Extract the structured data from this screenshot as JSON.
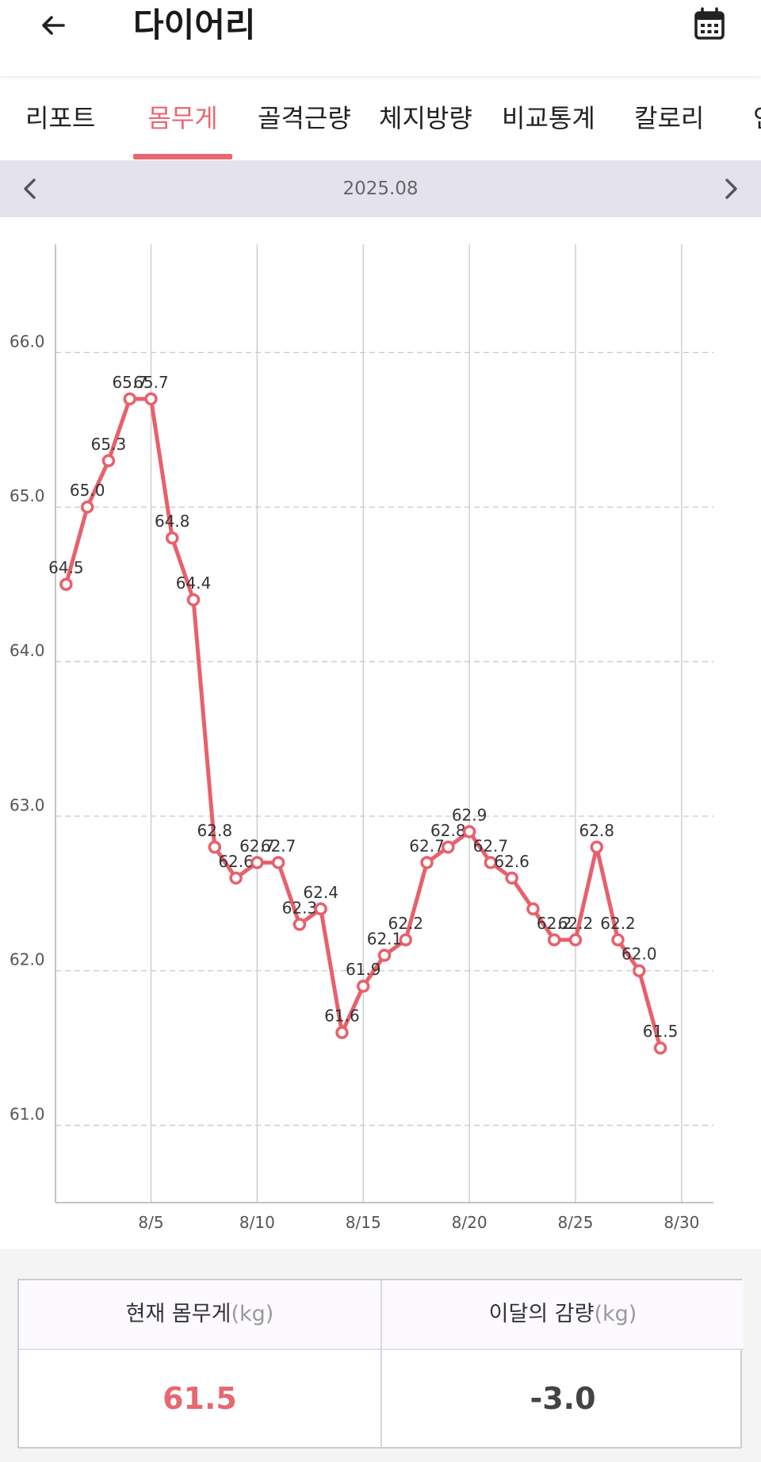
{
  "header": {
    "title": "다이어리",
    "back_icon": "arrow-left-icon",
    "calendar_icon": "calendar-icon"
  },
  "tabs": [
    {
      "label": "리포트",
      "active": false
    },
    {
      "label": "몸무게",
      "active": true
    },
    {
      "label": "골격근량",
      "active": false
    },
    {
      "label": "체지방량",
      "active": false
    },
    {
      "label": "비교통계",
      "active": false
    },
    {
      "label": "칼로리",
      "active": false
    },
    {
      "label": "인",
      "active": false
    }
  ],
  "month_nav": {
    "label": "2025.08",
    "prev_icon": "chevron-left-icon",
    "next_icon": "chevron-right-icon"
  },
  "colors": {
    "accent": "#e86770",
    "line": "#e8606b",
    "month_bar": "#e4e2ec"
  },
  "chart_data": {
    "type": "line",
    "x_unit": "day of August 2025",
    "x_ticks": [
      5,
      10,
      15,
      20,
      25,
      30
    ],
    "x_tick_labels": [
      "8/5",
      "8/10",
      "8/15",
      "8/20",
      "8/25",
      "8/30"
    ],
    "xlim": [
      0.5,
      31.5
    ],
    "y_ticks": [
      61.0,
      62.0,
      63.0,
      64.0,
      65.0,
      66.0
    ],
    "y_tick_labels": [
      "61.0",
      "62.0",
      "63.0",
      "64.0",
      "65.0",
      "66.0"
    ],
    "ylim": [
      60.5,
      66.7
    ],
    "grid": "horizontal dashed at y ticks, vertical solid at x ticks",
    "series": [
      {
        "x": [
          1,
          2,
          3,
          4,
          5,
          6,
          7,
          8,
          9,
          10,
          11,
          12,
          13,
          14,
          15,
          16,
          17,
          18,
          19,
          20,
          21,
          22,
          23,
          24,
          25,
          26,
          27,
          28,
          29
        ],
        "values": [
          64.5,
          65.0,
          65.3,
          65.7,
          65.7,
          64.8,
          64.4,
          62.8,
          62.6,
          62.7,
          62.7,
          62.3,
          62.4,
          61.6,
          61.9,
          62.1,
          62.2,
          62.7,
          62.8,
          62.9,
          62.7,
          62.6,
          62.4,
          62.2,
          62.2,
          62.8,
          62.2,
          62.0,
          61.5
        ],
        "labels": [
          "64.5",
          "65.0",
          "65.3",
          "65.7",
          "65.7",
          "64.8",
          "64.4",
          "62.8",
          "62.6",
          "62.7",
          "62.7",
          "62.3",
          "62.4",
          "61.6",
          "61.9",
          "62.1",
          "62.2",
          "62.7",
          "62.8",
          "62.9",
          "62.7",
          "62.6",
          "",
          "62.2",
          "62.2",
          "62.8",
          "62.2",
          "62.0",
          "61.5"
        ]
      }
    ]
  },
  "summary": {
    "current_label": "현재 몸무게",
    "current_unit": "(kg)",
    "current_value": "61.5",
    "change_label": "이달의 감량",
    "change_unit": "(kg)",
    "change_value": "-3.0"
  }
}
